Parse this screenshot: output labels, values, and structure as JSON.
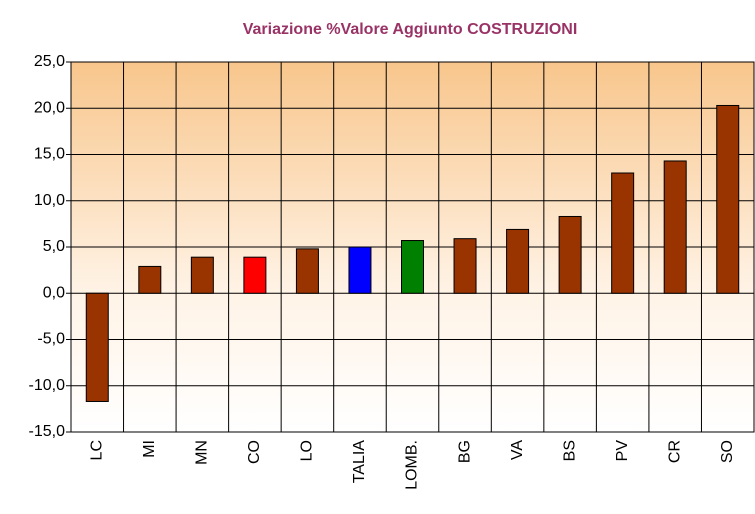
{
  "chart_data": {
    "type": "bar",
    "title": "Variazione %Valore Aggiunto COSTRUZIONI",
    "categories": [
      "LC",
      "MI",
      "MN",
      "CO",
      "LO",
      "TALIA",
      "LOMB.",
      "BG",
      "VA",
      "BS",
      "PV",
      "CR",
      "SO"
    ],
    "values": [
      -11.7,
      2.9,
      3.9,
      3.9,
      4.8,
      5.0,
      5.7,
      5.9,
      6.9,
      8.3,
      13.0,
      14.3,
      20.3
    ],
    "colors": [
      "#993300",
      "#993300",
      "#993300",
      "#ff0000",
      "#993300",
      "#0000ff",
      "#008000",
      "#993300",
      "#993300",
      "#993300",
      "#993300",
      "#993300",
      "#993300"
    ],
    "ylim": [
      -15,
      25
    ],
    "yticks": [
      {
        "value": -15,
        "label": "-15,0"
      },
      {
        "value": -10,
        "label": "-10,0"
      },
      {
        "value": -5,
        "label": "-5,0"
      },
      {
        "value": 0,
        "label": "0,0"
      },
      {
        "value": 5,
        "label": "5,0"
      },
      {
        "value": 10,
        "label": "10,0"
      },
      {
        "value": 15,
        "label": "15,0"
      },
      {
        "value": 20,
        "label": "20,0"
      },
      {
        "value": 25,
        "label": "25,0"
      }
    ],
    "grid": true
  }
}
